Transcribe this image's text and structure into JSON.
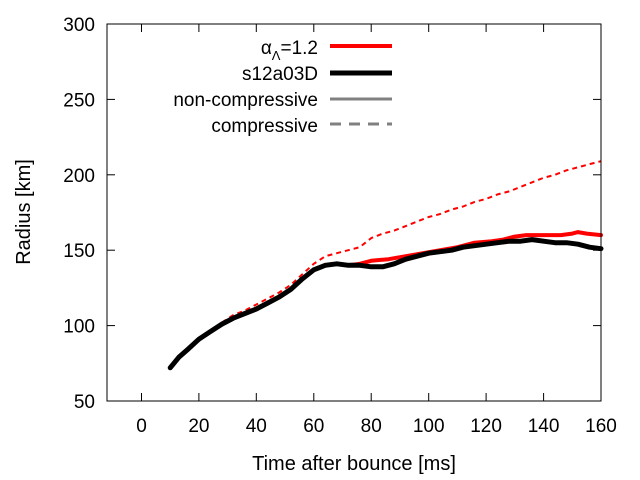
{
  "chart_data": {
    "type": "line",
    "title": "",
    "xlabel": "Time after bounce [ms]",
    "ylabel": "Radius [km]",
    "xlim": [
      -12,
      160
    ],
    "ylim": [
      50,
      300
    ],
    "xticks": [
      0,
      20,
      40,
      60,
      80,
      100,
      120,
      140,
      160
    ],
    "yticks": [
      50,
      100,
      150,
      200,
      250,
      300
    ],
    "grid": false,
    "legend_position": "top-center",
    "legend": [
      {
        "label_main": "α",
        "label_sub": "Λ",
        "label_rest": "=1.2",
        "kind": "model",
        "color": "#ff0000",
        "style": "solid-thick"
      },
      {
        "label": "s12a03D",
        "kind": "model",
        "color": "#000000",
        "style": "solid-thick"
      },
      {
        "label": "non-compressive",
        "kind": "style",
        "color": "#808080",
        "style": "solid"
      },
      {
        "label": "compressive",
        "kind": "style",
        "color": "#808080",
        "style": "dashed"
      }
    ],
    "series": [
      {
        "name": "αΛ=1.2 non-compressive",
        "color": "#ff0000",
        "dashed": false,
        "width": 4,
        "points": [
          [
            10,
            72
          ],
          [
            13,
            79
          ],
          [
            16,
            84
          ],
          [
            20,
            91
          ],
          [
            24,
            96
          ],
          [
            28,
            101
          ],
          [
            32,
            105
          ],
          [
            36,
            108
          ],
          [
            40,
            111
          ],
          [
            44,
            115
          ],
          [
            48,
            119
          ],
          [
            52,
            124
          ],
          [
            56,
            131
          ],
          [
            60,
            137
          ],
          [
            64,
            140
          ],
          [
            68,
            141
          ],
          [
            72,
            140
          ],
          [
            76,
            141
          ],
          [
            80,
            143
          ],
          [
            86,
            144
          ],
          [
            92,
            146
          ],
          [
            98,
            148
          ],
          [
            104,
            150
          ],
          [
            110,
            152
          ],
          [
            116,
            155
          ],
          [
            122,
            156
          ],
          [
            126,
            157
          ],
          [
            130,
            159
          ],
          [
            134,
            160
          ],
          [
            138,
            160
          ],
          [
            142,
            160
          ],
          [
            146,
            160
          ],
          [
            150,
            161
          ],
          [
            152,
            162
          ],
          [
            155,
            161
          ],
          [
            160,
            160
          ]
        ]
      },
      {
        "name": "s12a03D non-compressive",
        "color": "#000000",
        "dashed": false,
        "width": 5,
        "points": [
          [
            10,
            72
          ],
          [
            13,
            79
          ],
          [
            16,
            84
          ],
          [
            20,
            91
          ],
          [
            24,
            96
          ],
          [
            28,
            101
          ],
          [
            32,
            105
          ],
          [
            36,
            108
          ],
          [
            40,
            111
          ],
          [
            44,
            115
          ],
          [
            48,
            119
          ],
          [
            52,
            124
          ],
          [
            56,
            131
          ],
          [
            60,
            137
          ],
          [
            64,
            140
          ],
          [
            68,
            141
          ],
          [
            72,
            140
          ],
          [
            76,
            140
          ],
          [
            80,
            139
          ],
          [
            84,
            139
          ],
          [
            88,
            141
          ],
          [
            92,
            144
          ],
          [
            96,
            146
          ],
          [
            100,
            148
          ],
          [
            104,
            149
          ],
          [
            108,
            150
          ],
          [
            112,
            152
          ],
          [
            116,
            153
          ],
          [
            120,
            154
          ],
          [
            124,
            155
          ],
          [
            128,
            156
          ],
          [
            132,
            156
          ],
          [
            136,
            157
          ],
          [
            140,
            156
          ],
          [
            144,
            155
          ],
          [
            148,
            155
          ],
          [
            152,
            154
          ],
          [
            156,
            152
          ],
          [
            160,
            151
          ]
        ]
      },
      {
        "name": "αΛ=1.2 compressive",
        "color": "#ff0000",
        "dashed": true,
        "width": 2,
        "points": [
          [
            28,
            102
          ],
          [
            32,
            107
          ],
          [
            36,
            110
          ],
          [
            40,
            114
          ],
          [
            44,
            118
          ],
          [
            48,
            122
          ],
          [
            52,
            127
          ],
          [
            56,
            134
          ],
          [
            60,
            141
          ],
          [
            64,
            146
          ],
          [
            68,
            148
          ],
          [
            72,
            150
          ],
          [
            76,
            152
          ],
          [
            80,
            158
          ],
          [
            84,
            161
          ],
          [
            88,
            163
          ],
          [
            92,
            166
          ],
          [
            96,
            169
          ],
          [
            100,
            172
          ],
          [
            104,
            174
          ],
          [
            108,
            177
          ],
          [
            112,
            179
          ],
          [
            116,
            182
          ],
          [
            120,
            184
          ],
          [
            124,
            187
          ],
          [
            128,
            189
          ],
          [
            132,
            192
          ],
          [
            136,
            195
          ],
          [
            140,
            198
          ],
          [
            144,
            200
          ],
          [
            148,
            203
          ],
          [
            152,
            205
          ],
          [
            156,
            207
          ],
          [
            160,
            209
          ]
        ]
      }
    ]
  }
}
